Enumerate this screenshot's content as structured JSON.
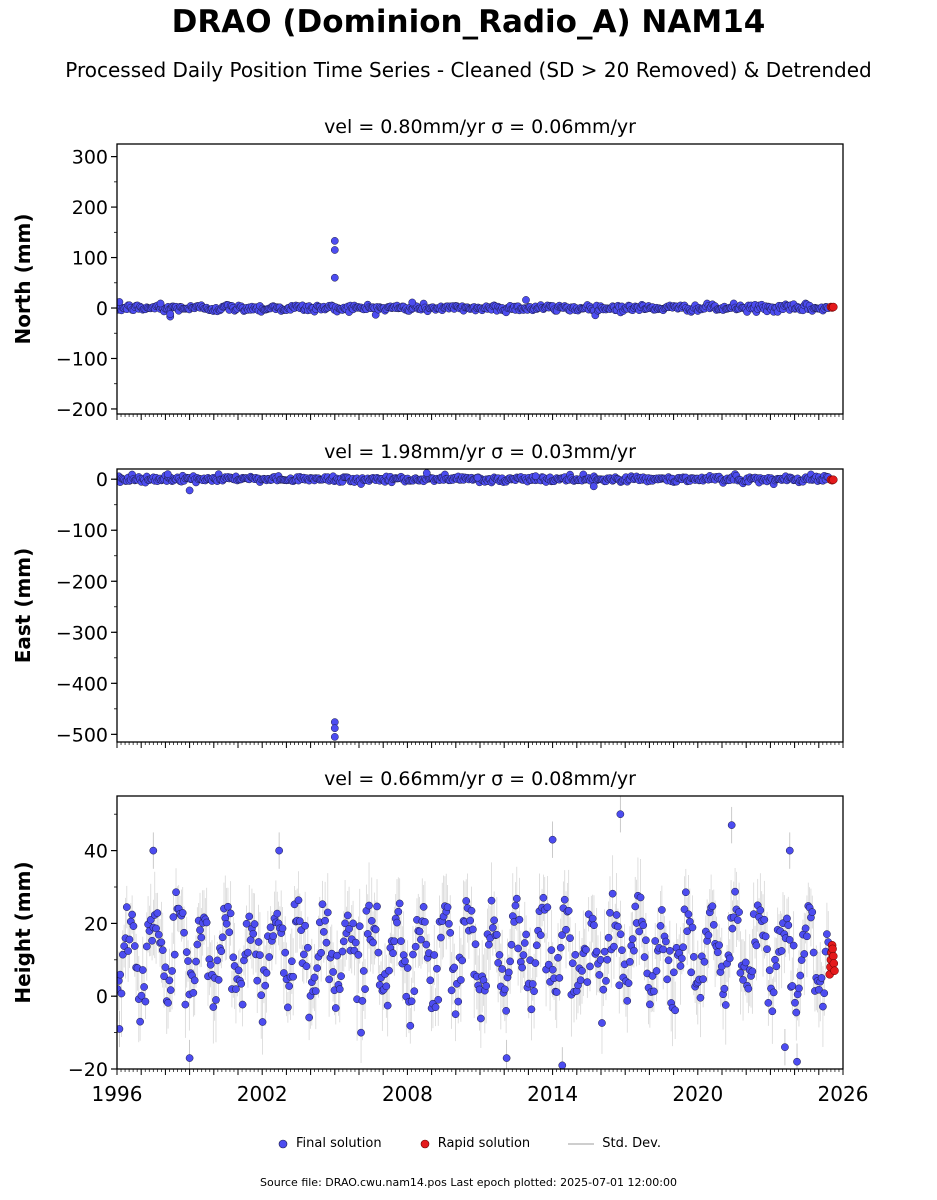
{
  "title": "DRAO (Dominion_Radio_A) NAM14",
  "subtitle": "Processed Daily Position Time Series - Cleaned (SD > 20 Removed) & Detrended",
  "legend": {
    "final": "Final solution",
    "rapid": "Rapid solution",
    "std": "Std. Dev."
  },
  "footer": "Source file: DRAO.cwu.nam14.pos  Last epoch plotted: 2025-07-01 12:00:00",
  "colors": {
    "final": "#4c4cf0",
    "rapid": "#e41a1c",
    "std": "#bdbdbd",
    "edge": "#1a1a40"
  },
  "chart_data": [
    {
      "type": "scatter",
      "title": "vel = 0.80mm/yr   σ = 0.06mm/yr",
      "ylabel": "North (mm)",
      "xlim": [
        1996,
        2026
      ],
      "ylim": [
        -210,
        325
      ],
      "yticks": [
        -200,
        -100,
        0,
        100,
        200,
        300
      ],
      "noise_sd": 3.5,
      "seasonal_amp": 1.0,
      "baseline": 0,
      "outliers": [
        {
          "x": 2005.0,
          "y": 133
        },
        {
          "x": 2005.0,
          "y": 115
        },
        {
          "x": 2005.0,
          "y": 60
        },
        {
          "x": 1998.2,
          "y": -17
        },
        {
          "x": 1998.2,
          "y": -12
        },
        {
          "x": 2012.9,
          "y": 16
        },
        {
          "x": 1996.1,
          "y": 12
        },
        {
          "x": 2008.2,
          "y": 11
        },
        {
          "x": 1997.8,
          "y": 9
        }
      ],
      "rapid": {
        "x": [
          2025.5,
          2025.55,
          2025.6
        ],
        "y": [
          2,
          1,
          2
        ]
      }
    },
    {
      "type": "scatter",
      "title": "vel = 1.98mm/yr   σ = 0.03mm/yr",
      "ylabel": "East (mm)",
      "xlim": [
        1996,
        2026
      ],
      "ylim": [
        -515,
        20
      ],
      "yticks": [
        -500,
        -400,
        -300,
        -200,
        -100,
        0
      ],
      "noise_sd": 3.0,
      "seasonal_amp": 1.0,
      "baseline": 0,
      "outliers": [
        {
          "x": 2005.0,
          "y": -476
        },
        {
          "x": 2005.0,
          "y": -488
        },
        {
          "x": 2005.0,
          "y": -505
        },
        {
          "x": 1999.0,
          "y": -22
        },
        {
          "x": 1998.1,
          "y": 10
        },
        {
          "x": 2008.8,
          "y": 12
        },
        {
          "x": 2015.7,
          "y": -14
        },
        {
          "x": 2013.3,
          "y": 6
        },
        {
          "x": 2010.9,
          "y": 3
        }
      ],
      "rapid": {
        "x": [
          2025.5,
          2025.55,
          2025.6
        ],
        "y": [
          -1,
          -2,
          -1
        ]
      }
    },
    {
      "type": "scatter",
      "title": "vel = 0.66mm/yr   σ = 0.08mm/yr",
      "ylabel": "Height (mm)",
      "xlim": [
        1996,
        2026
      ],
      "ylim": [
        -20,
        55
      ],
      "yticks": [
        -20,
        0,
        20,
        40
      ],
      "noise_sd": 5.0,
      "seasonal_amp": 10.0,
      "baseline": 12,
      "outliers": [
        {
          "x": 2016.8,
          "y": 50
        },
        {
          "x": 2021.4,
          "y": 47
        },
        {
          "x": 2014.0,
          "y": 43
        },
        {
          "x": 2002.7,
          "y": 40
        },
        {
          "x": 1999.0,
          "y": -17
        },
        {
          "x": 2012.1,
          "y": -17
        },
        {
          "x": 2014.4,
          "y": -19
        },
        {
          "x": 2024.1,
          "y": -18
        },
        {
          "x": 1996.1,
          "y": -9
        },
        {
          "x": 2023.6,
          "y": -14
        },
        {
          "x": 1997.5,
          "y": 40
        },
        {
          "x": 2023.8,
          "y": 40
        }
      ],
      "rapid": {
        "x": [
          2025.45,
          2025.48,
          2025.5,
          2025.52,
          2025.55,
          2025.57,
          2025.6,
          2025.62,
          2025.65
        ],
        "y": [
          6,
          8,
          10,
          12,
          14,
          13,
          11,
          9,
          7
        ]
      }
    }
  ],
  "xticks": [
    1996,
    2002,
    2008,
    2014,
    2020,
    2026
  ]
}
